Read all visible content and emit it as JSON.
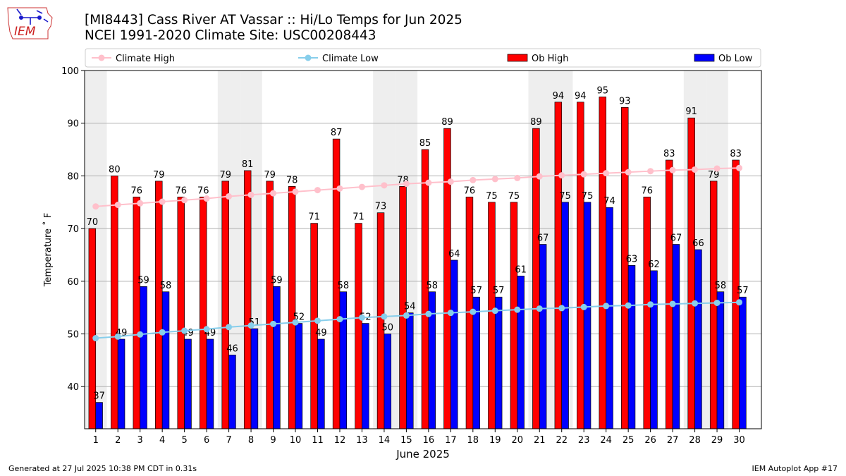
{
  "header": {
    "title_line1": "[MI8443] Cass River  AT Vassar :: Hi/Lo Temps for Jun 2025",
    "title_line2": "NCEI 1991-2020 Climate Site: USC00208443",
    "logo_text": "IEM"
  },
  "footer": {
    "generated": "Generated at 27 Jul 2025 10:38 PM CDT in 0.31s",
    "app": "IEM Autoplot App #17"
  },
  "colors": {
    "ob_high": "#ff0000",
    "ob_low": "#0000ff",
    "climate_high": "#ffc0cb",
    "climate_low": "#87ceeb",
    "weekend_shade": "#eeeeee"
  },
  "chart_data": {
    "type": "bar",
    "xlabel": "June 2025",
    "ylabel": "Temperature ˚ F",
    "ylim": [
      32,
      100
    ],
    "yticks": [
      40,
      50,
      60,
      70,
      80,
      90,
      100
    ],
    "grid": "horizontal",
    "legend_placement": "top",
    "categories": [
      "1",
      "2",
      "3",
      "4",
      "5",
      "6",
      "7",
      "8",
      "9",
      "10",
      "11",
      "12",
      "13",
      "14",
      "15",
      "16",
      "17",
      "18",
      "19",
      "20",
      "21",
      "22",
      "23",
      "24",
      "25",
      "26",
      "27",
      "28",
      "29",
      "30"
    ],
    "shaded_days": [
      1,
      7,
      8,
      14,
      15,
      21,
      22,
      28,
      29
    ],
    "series": [
      {
        "name": "Ob High",
        "kind": "bar",
        "values": [
          70,
          80,
          76,
          79,
          76,
          76,
          79,
          81,
          79,
          78,
          71,
          87,
          71,
          73,
          78,
          85,
          89,
          76,
          75,
          75,
          89,
          94,
          94,
          95,
          93,
          76,
          83,
          91,
          79,
          83
        ]
      },
      {
        "name": "Ob Low",
        "kind": "bar",
        "values": [
          37,
          49,
          59,
          58,
          49,
          49,
          46,
          51,
          59,
          52,
          49,
          58,
          52,
          50,
          54,
          58,
          64,
          57,
          57,
          61,
          67,
          75,
          75,
          74,
          63,
          62,
          67,
          66,
          58,
          57
        ]
      },
      {
        "name": "Climate High",
        "kind": "line",
        "values": [
          74.2,
          74.5,
          74.8,
          75.1,
          75.4,
          75.7,
          76.1,
          76.4,
          76.7,
          77.0,
          77.3,
          77.6,
          77.9,
          78.2,
          78.5,
          78.7,
          78.9,
          79.2,
          79.4,
          79.6,
          79.9,
          80.1,
          80.3,
          80.5,
          80.7,
          80.9,
          81.1,
          81.2,
          81.4,
          81.5
        ]
      },
      {
        "name": "Climate Low",
        "kind": "line",
        "values": [
          49.2,
          49.5,
          49.9,
          50.3,
          50.6,
          50.9,
          51.3,
          51.6,
          51.9,
          52.2,
          52.5,
          52.8,
          53.1,
          53.3,
          53.5,
          53.8,
          54.0,
          54.2,
          54.4,
          54.6,
          54.8,
          54.9,
          55.1,
          55.3,
          55.4,
          55.6,
          55.7,
          55.8,
          55.9,
          56.0
        ]
      }
    ]
  }
}
